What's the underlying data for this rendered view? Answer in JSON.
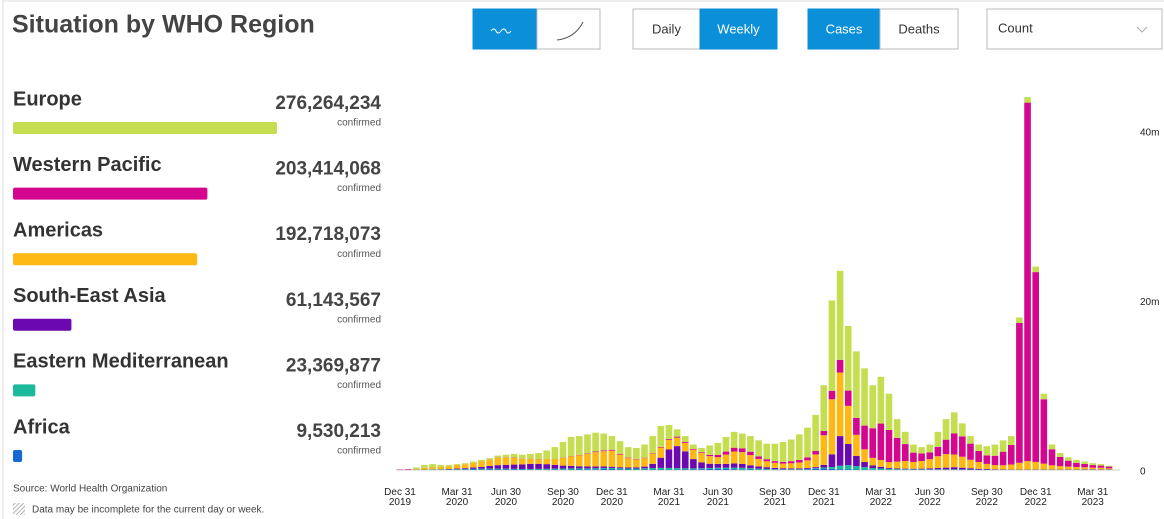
{
  "header": {
    "title": "Situation by WHO Region"
  },
  "controls": {
    "period": [
      {
        "label": "Daily",
        "active": false
      },
      {
        "label": "Weekly",
        "active": true
      }
    ],
    "measure": [
      {
        "label": "Cases",
        "active": true
      },
      {
        "label": "Deaths",
        "active": false
      }
    ],
    "scale": "Count"
  },
  "regions": [
    {
      "name": "Europe",
      "confirmed": 276264234,
      "confirmed_label": "276,264,234",
      "unit": "confirmed",
      "color": "#c4de4f"
    },
    {
      "name": "Western Pacific",
      "confirmed": 203414068,
      "confirmed_label": "203,414,068",
      "unit": "confirmed",
      "color": "#d4068e"
    },
    {
      "name": "Americas",
      "confirmed": 192718073,
      "confirmed_label": "192,718,073",
      "unit": "confirmed",
      "color": "#fdb813"
    },
    {
      "name": "South-East Asia",
      "confirmed": 61143567,
      "confirmed_label": "61,143,567",
      "unit": "confirmed",
      "color": "#6b08b0"
    },
    {
      "name": "Eastern Mediterranean",
      "confirmed": 23369877,
      "confirmed_label": "23,369,877",
      "unit": "confirmed",
      "color": "#1cb99b"
    },
    {
      "name": "Africa",
      "confirmed": 9530213,
      "confirmed_label": "9,530,213",
      "unit": "confirmed",
      "color": "#1867d2"
    }
  ],
  "chart_data": {
    "type": "bar",
    "stacked": true,
    "grid": false,
    "categories": [
      "Dec 31\n2019",
      null,
      null,
      null,
      null,
      null,
      null,
      "Mar 31\n2020",
      null,
      null,
      null,
      null,
      null,
      "Jun 30\n2020",
      null,
      null,
      null,
      null,
      null,
      null,
      "Sep 30\n2020",
      null,
      null,
      null,
      null,
      null,
      "Dec 31\n2020",
      null,
      null,
      null,
      null,
      null,
      null,
      "Mar 31\n2021",
      null,
      null,
      null,
      null,
      null,
      "Jun 30\n2021",
      null,
      null,
      null,
      null,
      null,
      null,
      "Sep 30\n2021",
      null,
      null,
      null,
      null,
      null,
      "Dec 31\n2021",
      null,
      null,
      null,
      null,
      null,
      null,
      "Mar 31\n2022",
      null,
      null,
      null,
      null,
      null,
      "Jun 30\n2022",
      null,
      null,
      null,
      null,
      null,
      null,
      "Sep 30\n2022",
      null,
      null,
      null,
      null,
      null,
      "Dec 31\n2022",
      null,
      null,
      null,
      null,
      null,
      null,
      "Mar 31\n2023",
      null,
      null
    ],
    "series": [
      {
        "name": "Europe",
        "color": "#c4de4f",
        "values": [
          0,
          0.02,
          0.2,
          0.34,
          0.36,
          0.24,
          0.17,
          0.12,
          0.13,
          0.15,
          0.17,
          0.18,
          0.25,
          0.31,
          0.43,
          0.46,
          0.56,
          0.7,
          0.99,
          1.37,
          1.85,
          2.27,
          2.21,
          2.22,
          2.21,
          1.99,
          1.61,
          1.49,
          1.24,
          1.29,
          1.55,
          2.01,
          2.47,
          1.66,
          0.86,
          0.68,
          0.51,
          0.5,
          1.11,
          1.43,
          1.73,
          1.87,
          1.74,
          1.84,
          1.89,
          1.82,
          2.05,
          2.34,
          2.56,
          3.01,
          3.51,
          4.26,
          5.4,
          10.65,
          10.5,
          7.63,
          7.85,
          6.76,
          5.07,
          5.52,
          4.27,
          2.21,
          1.44,
          0.95,
          0.74,
          0.92,
          1.77,
          2.42,
          2.47,
          1.53,
          0.89,
          0.76,
          1.08,
          1.32,
          1.34,
          1.05,
          0.65,
          0.65,
          0.65,
          0.65,
          0.55,
          0.45,
          0.4,
          0.35,
          0.28,
          0.22,
          0.18,
          0.1
        ]
      },
      {
        "name": "Western Pacific",
        "color": "#d4068e",
        "values": [
          0.05,
          0.08,
          0.02,
          0.01,
          0.01,
          0.01,
          0.01,
          0.01,
          0.01,
          0.01,
          0.02,
          0.02,
          0.03,
          0.03,
          0.03,
          0.02,
          0.02,
          0.02,
          0.02,
          0.02,
          0.03,
          0.04,
          0.05,
          0.06,
          0.08,
          0.09,
          0.1,
          0.08,
          0.06,
          0.05,
          0.05,
          0.06,
          0.08,
          0.1,
          0.12,
          0.12,
          0.1,
          0.1,
          0.15,
          0.25,
          0.35,
          0.45,
          0.45,
          0.4,
          0.3,
          0.25,
          0.2,
          0.2,
          0.25,
          0.3,
          0.35,
          0.4,
          0.5,
          1.0,
          1.5,
          1.8,
          2.0,
          2.8,
          3.5,
          4.3,
          3.8,
          2.8,
          2.0,
          1.1,
          0.9,
          0.8,
          1.1,
          1.7,
          2.5,
          2.4,
          1.9,
          1.3,
          1.0,
          1.1,
          1.6,
          2.3,
          16.5,
          42.3,
          22.4,
          7.6,
          1.9,
          1.1,
          0.7,
          0.5,
          0.4,
          0.3,
          0.25,
          0.2
        ]
      },
      {
        "name": "Americas",
        "color": "#fdb813",
        "values": [
          0,
          0,
          0.05,
          0.2,
          0.25,
          0.26,
          0.3,
          0.4,
          0.45,
          0.55,
          0.65,
          0.72,
          0.85,
          0.85,
          0.8,
          0.65,
          0.6,
          0.55,
          0.6,
          0.7,
          0.9,
          1.1,
          1.3,
          1.5,
          1.7,
          1.8,
          1.9,
          1.5,
          1.1,
          0.95,
          1.0,
          1.2,
          1.2,
          1.1,
          1.0,
          1.0,
          1.1,
          1.1,
          0.9,
          0.8,
          1.1,
          1.4,
          1.4,
          1.2,
          0.9,
          0.7,
          0.6,
          0.55,
          0.6,
          0.7,
          0.9,
          1.5,
          3.5,
          6.5,
          7.5,
          4.5,
          2.5,
          1.5,
          0.9,
          0.8,
          0.7,
          0.8,
          0.9,
          0.8,
          0.9,
          1.1,
          1.4,
          1.6,
          1.5,
          1.3,
          1.0,
          0.8,
          0.6,
          0.5,
          0.5,
          0.6,
          0.8,
          1.0,
          0.9,
          0.7,
          0.5,
          0.4,
          0.35,
          0.3,
          0.25,
          0.2,
          0.2,
          0.15
        ]
      },
      {
        "name": "South-East Asia",
        "color": "#6b08b0",
        "values": [
          0,
          0,
          0,
          0.01,
          0.02,
          0.03,
          0.05,
          0.08,
          0.1,
          0.15,
          0.2,
          0.3,
          0.4,
          0.45,
          0.5,
          0.55,
          0.6,
          0.6,
          0.55,
          0.45,
          0.35,
          0.3,
          0.25,
          0.22,
          0.2,
          0.18,
          0.15,
          0.13,
          0.12,
          0.13,
          0.2,
          0.5,
          1.2,
          2.2,
          2.6,
          2.0,
          1.1,
          0.7,
          0.5,
          0.45,
          0.45,
          0.5,
          0.45,
          0.35,
          0.25,
          0.2,
          0.15,
          0.12,
          0.1,
          0.1,
          0.1,
          0.12,
          0.3,
          1.5,
          3.5,
          2.5,
          1.2,
          0.6,
          0.3,
          0.2,
          0.1,
          0.08,
          0.06,
          0.05,
          0.07,
          0.1,
          0.15,
          0.2,
          0.25,
          0.2,
          0.15,
          0.1,
          0.08,
          0.05,
          0.03,
          0.02,
          0.02,
          0.02,
          0.02,
          0.02,
          0.02,
          0.02,
          0.02,
          0.02,
          0.04,
          0.05,
          0.04,
          0.03
        ]
      },
      {
        "name": "Eastern Mediterranean",
        "color": "#1cb99b",
        "values": [
          0,
          0,
          0.03,
          0.04,
          0.05,
          0.05,
          0.05,
          0.06,
          0.07,
          0.08,
          0.08,
          0.08,
          0.07,
          0.07,
          0.07,
          0.07,
          0.08,
          0.09,
          0.1,
          0.12,
          0.13,
          0.14,
          0.13,
          0.13,
          0.12,
          0.12,
          0.12,
          0.12,
          0.12,
          0.13,
          0.15,
          0.18,
          0.2,
          0.2,
          0.18,
          0.15,
          0.12,
          0.1,
          0.1,
          0.12,
          0.15,
          0.18,
          0.18,
          0.15,
          0.12,
          0.1,
          0.08,
          0.07,
          0.07,
          0.06,
          0.06,
          0.07,
          0.1,
          0.2,
          0.4,
          0.5,
          0.4,
          0.3,
          0.2,
          0.15,
          0.1,
          0.08,
          0.06,
          0.05,
          0.05,
          0.05,
          0.06,
          0.06,
          0.06,
          0.05,
          0.04,
          0.03,
          0.03,
          0.02,
          0.02,
          0.02,
          0.02,
          0.02,
          0.02,
          0.02,
          0.02,
          0.02,
          0.02,
          0.02,
          0.02,
          0.02,
          0.02,
          0.01
        ]
      },
      {
        "name": "Africa",
        "color": "#1867d2",
        "values": [
          0,
          0,
          0,
          0,
          0.01,
          0.01,
          0.02,
          0.03,
          0.04,
          0.06,
          0.08,
          0.1,
          0.1,
          0.09,
          0.07,
          0.05,
          0.04,
          0.04,
          0.04,
          0.04,
          0.04,
          0.05,
          0.06,
          0.07,
          0.09,
          0.12,
          0.12,
          0.08,
          0.06,
          0.05,
          0.05,
          0.05,
          0.05,
          0.04,
          0.04,
          0.05,
          0.07,
          0.1,
          0.14,
          0.15,
          0.12,
          0.1,
          0.08,
          0.06,
          0.04,
          0.03,
          0.02,
          0.02,
          0.02,
          0.03,
          0.08,
          0.15,
          0.2,
          0.15,
          0.1,
          0.07,
          0.05,
          0.04,
          0.03,
          0.03,
          0.03,
          0.03,
          0.04,
          0.05,
          0.04,
          0.03,
          0.02,
          0.02,
          0.02,
          0.02,
          0.02,
          0.01,
          0.01,
          0.01,
          0.01,
          0.01,
          0.01,
          0.01,
          0.01,
          0.01,
          0.01,
          0.01,
          0.01,
          0.01,
          0.01,
          0.01,
          0.01,
          0.01
        ]
      }
    ],
    "ylim": [
      0,
      45
    ],
    "yticks": [
      0,
      {
        "value": 20,
        "label": "20m"
      },
      {
        "value": 40,
        "label": "40m"
      }
    ]
  },
  "footer": {
    "source": "Source: World Health Organization",
    "note": "Data may be incomplete for the current day or week."
  }
}
